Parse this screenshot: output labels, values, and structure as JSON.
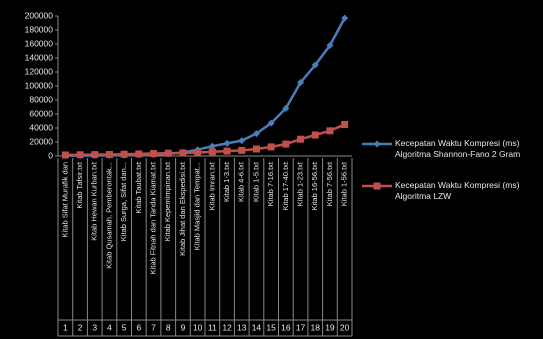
{
  "chart_data": {
    "type": "line",
    "categories": [
      "Kitab Sifat Murafik dan",
      "Kitab Tafsir.txt",
      "Kitab Hewan Kurban.txt",
      "Kitab Qusamah, Pemberontak...",
      "Kitab Surga, Sifat dan...",
      "Kitab Taubat.txt",
      "Kitab Fitnah dan Tanda Kiamat.txt",
      "Kitab Kepemimpinan.txt",
      "Kitab Jihat dan Ekspedisi.txt",
      "Kitab Masjid dan Tempat...",
      "Kitab Imran.txt",
      "Kitab 1-3.txt",
      "Kitab 4-6.txt",
      "Kitab 1-5.txt",
      "Kitab 7-16.txt",
      "Kitab 17-40.txt",
      "Kitab 1-23.txt",
      "Kitab 16-56.txt",
      "Kitab 7-56.txt",
      "Kitab 1-56.txt"
    ],
    "category_numbers": [
      "1",
      "2",
      "3",
      "4",
      "5",
      "6",
      "7",
      "8",
      "9",
      "10",
      "11",
      "12",
      "13",
      "14",
      "15",
      "16",
      "17",
      "18",
      "19",
      "20"
    ],
    "series": [
      {
        "name": "Kecepatan Waktu Kompresi (ms) Algoritma Shannon-Fano 2 Gram",
        "color": "#4a7ebb",
        "marker": "diamond",
        "values": [
          500,
          500,
          700,
          800,
          1000,
          1500,
          2000,
          3000,
          5000,
          9000,
          14000,
          18000,
          22000,
          32000,
          47000,
          68000,
          105000,
          130000,
          158000,
          197000
        ]
      },
      {
        "name": "Kecepatan Waktu Kompresi (ms) Algoritma LZW",
        "color": "#c0504d",
        "marker": "square",
        "values": [
          1500,
          1800,
          2000,
          2200,
          2500,
          3000,
          3500,
          4000,
          4500,
          5000,
          6000,
          7000,
          8000,
          10000,
          13000,
          17000,
          24000,
          30000,
          36000,
          45000
        ]
      }
    ],
    "ylim": [
      0,
      200000
    ],
    "yticks": [
      0,
      20000,
      40000,
      60000,
      80000,
      100000,
      120000,
      140000,
      160000,
      180000,
      200000
    ],
    "grid": false,
    "legend": "right"
  }
}
